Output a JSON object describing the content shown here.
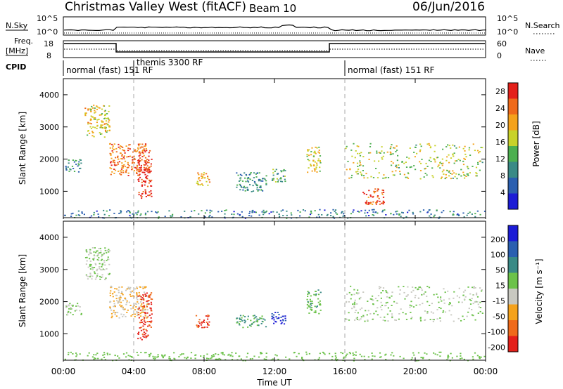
{
  "header": {
    "station": "Christmas Valley West (fitACF)",
    "beam": "Beam 10",
    "date": "06/Jun/2016"
  },
  "top_panels": {
    "nsky_label": "N.Sky",
    "nsky_ticks": [
      "10^5",
      "10^0"
    ],
    "nsearch_label": "N.Search",
    "nsearch_ticks": [
      "10^5",
      "10^0"
    ],
    "freq_label_1": "Freq.",
    "freq_label_2": "[MHz]",
    "freq_ticks": [
      "18",
      "8"
    ],
    "nave_label": "Nave",
    "nave_ticks": [
      "60",
      "0"
    ],
    "cpid_label": "CPID",
    "cpid_segments": [
      {
        "label": "normal (fast) 151 RF",
        "start_h": 0,
        "end_h": 16
      },
      {
        "label": "themis 3300 RF",
        "start_h": 4.0,
        "end_h": 15.0
      },
      {
        "label": "normal (fast) 151 RF",
        "start_h": 16,
        "end_h": 24
      }
    ]
  },
  "chart_data": [
    {
      "type": "heatmap",
      "panel": "power",
      "xlabel": "Time UT",
      "ylabel": "Slant Range [km]",
      "xlim": [
        0,
        24
      ],
      "ylim": [
        180,
        4500
      ],
      "x_ticks": [
        "00:00",
        "04:00",
        "08:00",
        "12:00",
        "16:00",
        "20:00",
        "00:00"
      ],
      "y_ticks": [
        1000,
        2000,
        3000,
        4000
      ],
      "colorbar": {
        "label": "Power [dB]",
        "ticks": [
          4,
          8,
          12,
          16,
          20,
          24,
          28
        ],
        "range": [
          0,
          30
        ],
        "colors": [
          "#1c1cd6",
          "#2b5fb0",
          "#3a8a86",
          "#4caf50",
          "#c8d22a",
          "#f5a21b",
          "#ef6a1a",
          "#e4201a"
        ]
      },
      "echo_regions": [
        {
          "t0": 1.2,
          "t1": 2.6,
          "r0": 2700,
          "r1": 3700,
          "power": 18
        },
        {
          "t0": 2.6,
          "t1": 4.8,
          "r0": 1500,
          "r1": 2500,
          "power": 24
        },
        {
          "t0": 4.2,
          "t1": 5.0,
          "r0": 800,
          "r1": 2300,
          "power": 28
        },
        {
          "t0": 0.1,
          "t1": 1.0,
          "r0": 1600,
          "r1": 2000,
          "power": 10
        },
        {
          "t0": 7.5,
          "t1": 8.3,
          "r0": 1200,
          "r1": 1600,
          "power": 20
        },
        {
          "t0": 9.8,
          "t1": 11.5,
          "r0": 1000,
          "r1": 1600,
          "power": 10
        },
        {
          "t0": 11.8,
          "t1": 12.6,
          "r0": 1300,
          "r1": 1700,
          "power": 12
        },
        {
          "t0": 13.8,
          "t1": 14.6,
          "r0": 1600,
          "r1": 2400,
          "power": 18
        },
        {
          "t0": 16.0,
          "t1": 23.8,
          "r0": 1400,
          "r1": 2500,
          "power": 16
        },
        {
          "t0": 17.0,
          "t1": 18.2,
          "r0": 600,
          "r1": 1100,
          "power": 26
        },
        {
          "t0": 0.0,
          "t1": 24.0,
          "r0": 180,
          "r1": 450,
          "power": 8
        }
      ]
    },
    {
      "type": "heatmap",
      "panel": "velocity",
      "xlabel": "Time UT",
      "ylabel": "Slant Range [km]",
      "xlim": [
        0,
        24
      ],
      "ylim": [
        180,
        4500
      ],
      "x_ticks": [
        "00:00",
        "04:00",
        "08:00",
        "12:00",
        "16:00",
        "20:00",
        "00:00"
      ],
      "y_ticks": [
        1000,
        2000,
        3000,
        4000
      ],
      "colorbar": {
        "label": "Velocity [m s⁻¹]",
        "ticks": [
          200,
          100,
          50,
          15,
          -15,
          -50,
          -100,
          -200
        ],
        "range": [
          -250,
          250
        ],
        "colors": [
          "#1c1cd6",
          "#2b5fb0",
          "#3a8a86",
          "#6cc24a",
          "#c8c8c0",
          "#f5a21b",
          "#ef6a1a",
          "#e4201a"
        ]
      },
      "echo_regions": [
        {
          "t0": 1.2,
          "t1": 2.6,
          "r0": 2700,
          "r1": 3700,
          "velocity": 0
        },
        {
          "t0": 2.6,
          "t1": 4.8,
          "r0": 1500,
          "r1": 2500,
          "velocity": -60
        },
        {
          "t0": 4.2,
          "t1": 5.0,
          "r0": 800,
          "r1": 2300,
          "velocity": -200
        },
        {
          "t0": 0.1,
          "t1": 1.0,
          "r0": 1600,
          "r1": 2000,
          "velocity": 0
        },
        {
          "t0": 7.5,
          "t1": 8.3,
          "r0": 1200,
          "r1": 1600,
          "velocity": -200
        },
        {
          "t0": 9.8,
          "t1": 11.5,
          "r0": 1200,
          "r1": 1600,
          "velocity": 60
        },
        {
          "t0": 11.8,
          "t1": 12.6,
          "r0": 1300,
          "r1": 1700,
          "velocity": 200
        },
        {
          "t0": 13.8,
          "t1": 14.6,
          "r0": 1600,
          "r1": 2400,
          "velocity": 40
        },
        {
          "t0": 16.0,
          "t1": 23.8,
          "r0": 1400,
          "r1": 2500,
          "velocity": 0
        },
        {
          "t0": 0.0,
          "t1": 24.0,
          "r0": 180,
          "r1": 450,
          "velocity": 30
        }
      ]
    }
  ]
}
